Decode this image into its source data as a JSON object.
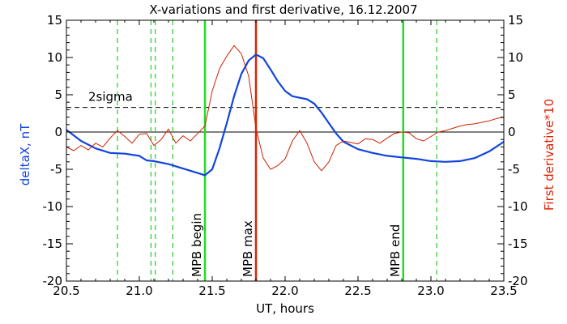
{
  "chart_data": {
    "type": "line",
    "title": "X-variations and first derivative, 16.12.2007",
    "xlabel": "UT, hours",
    "ylabel": "deltaX, nT",
    "y2label": "First derivative*10",
    "xlim": [
      20.5,
      23.5
    ],
    "ylim": [
      -20,
      15
    ],
    "y2lim": [
      -20,
      15
    ],
    "x_ticks": [
      "20.5",
      "21.0",
      "21.5",
      "22.0",
      "22.5",
      "23.0",
      "23.5"
    ],
    "y_ticks": [
      "15",
      "10",
      "5",
      "0",
      "-5",
      "-10",
      "-15",
      "-20"
    ],
    "y2_ticks": [
      "15",
      "10",
      "5",
      "0",
      "-5",
      "-10",
      "-15",
      "-20"
    ],
    "zero_line": 0,
    "threshold": {
      "label": "2sigma",
      "value": 3.3,
      "style": "dashed",
      "color": "#000000"
    },
    "vertical_markers": [
      {
        "x": 20.85,
        "style": "dashed",
        "color": "#22cc22"
      },
      {
        "x": 21.08,
        "style": "dashed",
        "color": "#22cc22"
      },
      {
        "x": 21.11,
        "style": "dashed",
        "color": "#22cc22"
      },
      {
        "x": 21.23,
        "style": "dashed",
        "color": "#22cc22"
      },
      {
        "x": 21.45,
        "style": "solid",
        "color": "#22dd22",
        "label": "MPB begin"
      },
      {
        "x": 21.8,
        "style": "solid",
        "color": "#dd2200",
        "label": "MPB max"
      },
      {
        "x": 22.81,
        "style": "solid",
        "color": "#22dd22",
        "label": "MPB end"
      },
      {
        "x": 23.04,
        "style": "dashed",
        "color": "#22cc22"
      }
    ],
    "series": [
      {
        "color": "#1144dd",
        "x": [
          20.5,
          20.6,
          20.7,
          20.8,
          20.9,
          21.0,
          21.05,
          21.1,
          21.2,
          21.3,
          21.4,
          21.45,
          21.5,
          21.55,
          21.6,
          21.65,
          21.7,
          21.75,
          21.8,
          21.85,
          21.9,
          21.95,
          22.0,
          22.05,
          22.1,
          22.15,
          22.2,
          22.25,
          22.3,
          22.35,
          22.4,
          22.5,
          22.6,
          22.7,
          22.8,
          22.9,
          23.0,
          23.1,
          23.2,
          23.3,
          23.4,
          23.5
        ],
        "y": [
          0.3,
          -1.2,
          -2.2,
          -2.8,
          -2.9,
          -3.2,
          -3.8,
          -3.9,
          -4.3,
          -4.9,
          -5.5,
          -5.8,
          -5.0,
          -2.2,
          1.2,
          4.8,
          7.8,
          9.6,
          10.4,
          9.9,
          8.4,
          6.8,
          5.5,
          4.8,
          4.6,
          4.4,
          3.8,
          2.6,
          1.2,
          -0.2,
          -1.3,
          -2.3,
          -2.8,
          -3.2,
          -3.4,
          -3.6,
          -3.9,
          -4.0,
          -3.9,
          -3.5,
          -2.6,
          -1.3
        ]
      },
      {
        "color": "#cc2200",
        "x": [
          20.5,
          20.55,
          20.6,
          20.65,
          20.7,
          20.75,
          20.8,
          20.85,
          20.9,
          20.95,
          21.0,
          21.05,
          21.1,
          21.15,
          21.2,
          21.25,
          21.3,
          21.35,
          21.4,
          21.45,
          21.5,
          21.55,
          21.6,
          21.65,
          21.7,
          21.75,
          21.8,
          21.85,
          21.9,
          21.95,
          22.0,
          22.05,
          22.1,
          22.15,
          22.2,
          22.25,
          22.3,
          22.35,
          22.4,
          22.45,
          22.5,
          22.55,
          22.6,
          22.65,
          22.7,
          22.75,
          22.8,
          22.85,
          22.9,
          22.95,
          23.0,
          23.05,
          23.1,
          23.15,
          23.2,
          23.25,
          23.3,
          23.35,
          23.4,
          23.45,
          23.5
        ],
        "y": [
          -2.0,
          -2.5,
          -1.8,
          -2.4,
          -1.5,
          -2.0,
          -0.8,
          0.2,
          -0.6,
          -1.5,
          -0.3,
          -0.2,
          -1.8,
          -1.0,
          0.4,
          -1.5,
          -0.5,
          -1.2,
          -0.2,
          0.8,
          5.5,
          8.5,
          10.2,
          11.6,
          10.5,
          7.5,
          0.5,
          -3.5,
          -5.0,
          -4.5,
          -3.6,
          -1.2,
          0.2,
          -1.5,
          -4.0,
          -5.2,
          -4.0,
          -1.8,
          -1.2,
          -1.4,
          -1.6,
          -0.9,
          -1.0,
          -1.5,
          -0.8,
          -0.2,
          0.0,
          -0.1,
          -0.9,
          -1.2,
          -0.6,
          0.0,
          0.2,
          0.5,
          0.8,
          1.0,
          1.1,
          1.3,
          1.5,
          1.8,
          2.0
        ]
      }
    ]
  }
}
